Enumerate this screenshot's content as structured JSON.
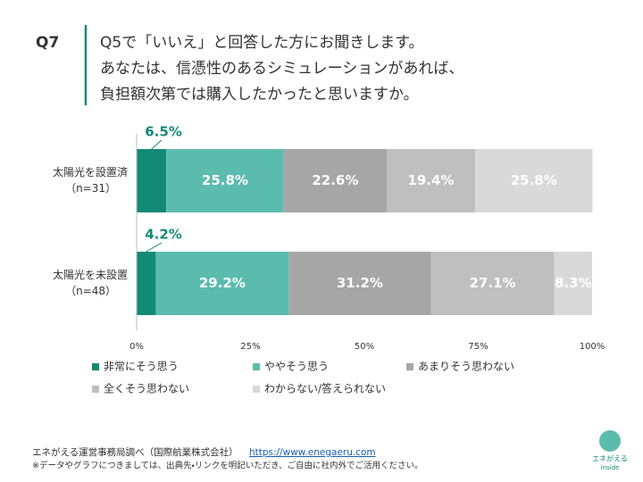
{
  "chart_data": {
    "type": "stacked-bar-horizontal",
    "question": "Q7",
    "title": [
      "Q5で「いいえ」と回答した方にお聞きします。",
      "あなたは、信憑性のあるシミュレーションがあれば、",
      "負担額次第では購入したかったと思いますか。"
    ],
    "categories": [
      "太陽光を設置済",
      "太陽光を未設置"
    ],
    "category_notes": [
      "（n=31）",
      "（n=48）"
    ],
    "series": [
      {
        "name": "非常にそう思う",
        "color": "#138a76",
        "values": [
          6.5,
          4.2
        ],
        "value_labels": [
          "6.5%",
          "4.2%"
        ]
      },
      {
        "name": "ややそう思う",
        "color": "#5bbcae",
        "values": [
          25.8,
          29.2
        ],
        "value_labels": [
          "25.8%",
          "29.2%"
        ]
      },
      {
        "name": "あまりそう思わない",
        "color": "#a6a6a6",
        "values": [
          22.6,
          31.2
        ],
        "value_labels": [
          "22.6%",
          "31.2%"
        ]
      },
      {
        "name": "全くそう思わない",
        "color": "#bfbfbf",
        "values": [
          19.4,
          27.1
        ],
        "value_labels": [
          "19.4%",
          "27.1%"
        ]
      },
      {
        "name": "わからない/答えられない",
        "color": "#d9d9d9",
        "values": [
          25.8,
          8.3
        ],
        "value_labels": [
          "25.8%",
          "8.3%"
        ]
      }
    ],
    "xlim": [
      0,
      100
    ],
    "xticks": [
      {
        "value": 0,
        "label": "0%"
      },
      {
        "value": 25,
        "label": "25%"
      },
      {
        "value": 50,
        "label": "50%"
      },
      {
        "value": 75,
        "label": "75%"
      },
      {
        "value": 100,
        "label": "100%"
      }
    ],
    "grid": false,
    "source": "エネがえる運営事務局調べ（国際航業株式会社）",
    "link": "https://www.enegaeru.com",
    "note": "※データやグラフにつきましては、出典先・リンクを明記いただき、ご自由に社内外でご活用ください。",
    "logo_text": "エネがえる",
    "logo_sub": "inside"
  }
}
